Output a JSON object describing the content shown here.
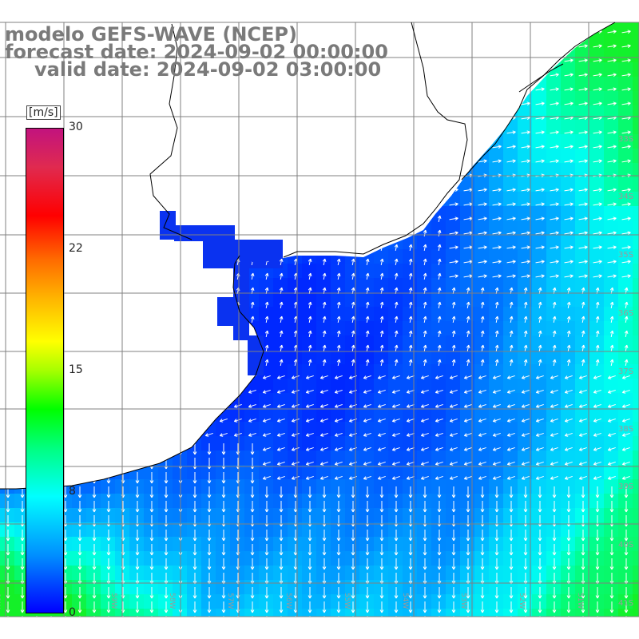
{
  "title": {
    "line1": "modelo GEFS-WAVE (NCEP)",
    "line2": "forecast date: 2024-09-02 00:00:00",
    "line3": "valid date: 2024-09-02 03:00:00"
  },
  "colorbar": {
    "unit": "[m/s]",
    "ticks": [
      "30",
      "22",
      "15",
      "8",
      "0"
    ],
    "colors": [
      "#c2137e",
      "#ff0000",
      "#ff8c00",
      "#ffff00",
      "#00ff00",
      "#00ffff",
      "#0000ff"
    ]
  },
  "axes": {
    "lon_labels": [
      "61W",
      "60W",
      "59W",
      "58W",
      "57W",
      "56W",
      "55W",
      "54W",
      "53W",
      "52W",
      "51W"
    ],
    "lat_labels": [
      "33S",
      "34S",
      "35S",
      "36S",
      "37S",
      "38S",
      "39S",
      "40S",
      "41S"
    ]
  },
  "map": {
    "land_color": "#ffffff",
    "coast_color": "#000000",
    "grid_color": "#808080",
    "arrow_color": "#ffffff"
  }
}
